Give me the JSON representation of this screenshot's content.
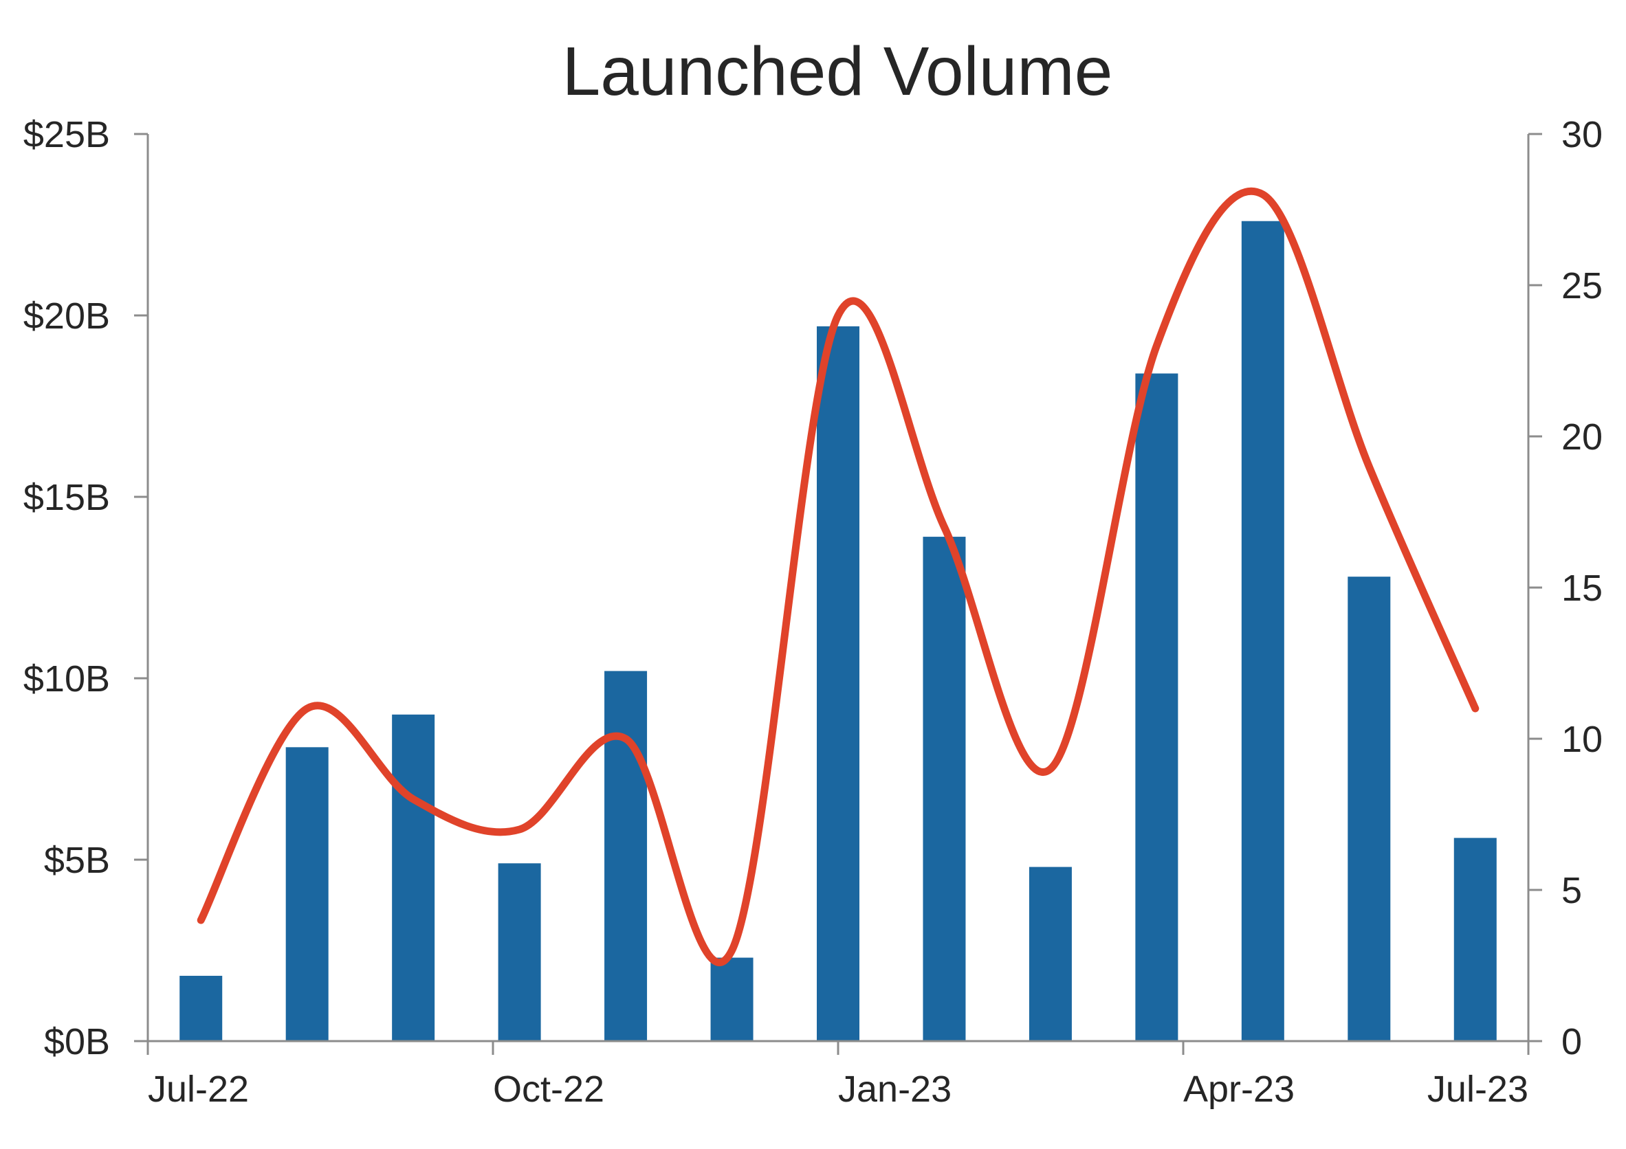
{
  "chart_data": {
    "type": "bar",
    "title": "Launched Volume",
    "x_tick_labels": [
      "Jul-22",
      "Oct-22",
      "Jan-23",
      "Apr-23",
      "Jul-23"
    ],
    "x": [
      "2022-07",
      "2022-08",
      "2022-09",
      "2022-10",
      "2022-11",
      "2022-12",
      "2023-01",
      "2023-02",
      "2023-03",
      "2023-04",
      "2023-05",
      "2023-06",
      "2023-07"
    ],
    "left_axis": {
      "ylim": [
        0,
        25
      ],
      "ticks": [
        0,
        5,
        10,
        15,
        20,
        25
      ],
      "tick_labels": [
        "$0B",
        "$5B",
        "$10B",
        "$15B",
        "$20B",
        "$25B"
      ]
    },
    "right_axis": {
      "ylim": [
        0,
        30
      ],
      "ticks": [
        0,
        5,
        10,
        15,
        20,
        25,
        30
      ],
      "tick_labels": [
        "0",
        "5",
        "10",
        "15",
        "20",
        "25",
        "30"
      ]
    },
    "series": [
      {
        "type": "bar",
        "axis": "left",
        "color": "#1b67a0",
        "values": [
          1.8,
          8.1,
          9.0,
          4.9,
          10.2,
          2.3,
          19.7,
          13.9,
          4.8,
          18.4,
          22.6,
          12.8,
          5.6
        ]
      },
      {
        "type": "line",
        "axis": "right",
        "color": "#e0432a",
        "smooth": true,
        "values": [
          4,
          11,
          8,
          7,
          10,
          3,
          24,
          17,
          9,
          23,
          28,
          19,
          11
        ]
      }
    ],
    "grid": false,
    "legend": "none"
  }
}
